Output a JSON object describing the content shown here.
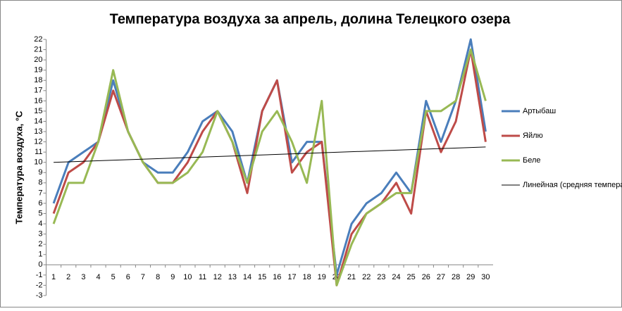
{
  "chart_data": {
    "type": "line",
    "title": "Температура воздуха за апрель, долина Телецкого озера",
    "y_label": "Температура воздуха, °С",
    "categories": [
      "1",
      "2",
      "3",
      "4",
      "5",
      "6",
      "7",
      "8",
      "9",
      "10",
      "11",
      "12",
      "13",
      "14",
      "15",
      "16",
      "17",
      "18",
      "19",
      "20",
      "21",
      "22",
      "23",
      "24",
      "25",
      "26",
      "27",
      "28",
      "29",
      "30"
    ],
    "ylim": [
      -3,
      22
    ],
    "yticks": [
      -3,
      -2,
      -1,
      0,
      1,
      2,
      3,
      4,
      5,
      6,
      7,
      8,
      9,
      10,
      11,
      12,
      13,
      14,
      15,
      16,
      17,
      18,
      19,
      20,
      21,
      22
    ],
    "grid": false,
    "legend": "right",
    "series": [
      {
        "name": "Артыбаш",
        "color": "#4a7ebb",
        "values": [
          6,
          10,
          11,
          12,
          18,
          13,
          10,
          9,
          9,
          11,
          14,
          15,
          13,
          8,
          15,
          18,
          10,
          12,
          12,
          -1,
          4,
          6,
          7,
          9,
          7,
          16,
          12,
          16,
          22,
          13
        ]
      },
      {
        "name": "Яйлю",
        "color": "#be4b48",
        "values": [
          5,
          9,
          10,
          12,
          17,
          13,
          10,
          8,
          8,
          10,
          13,
          15,
          12,
          7,
          15,
          18,
          9,
          11,
          12,
          -2,
          3,
          5,
          6,
          8,
          5,
          15,
          11,
          14,
          21,
          12
        ]
      },
      {
        "name": "Беле",
        "color": "#98b954",
        "values": [
          4,
          8,
          8,
          12,
          19,
          13,
          10,
          8,
          8,
          9,
          11,
          15,
          12,
          8,
          13,
          15,
          12,
          8,
          16,
          -2,
          2,
          5,
          6,
          7,
          7,
          15,
          15,
          16,
          21,
          16
        ]
      }
    ],
    "trendline": {
      "name": "Линейная (средняя температура)",
      "color": "#000000",
      "values": [
        10,
        11.5
      ]
    }
  }
}
